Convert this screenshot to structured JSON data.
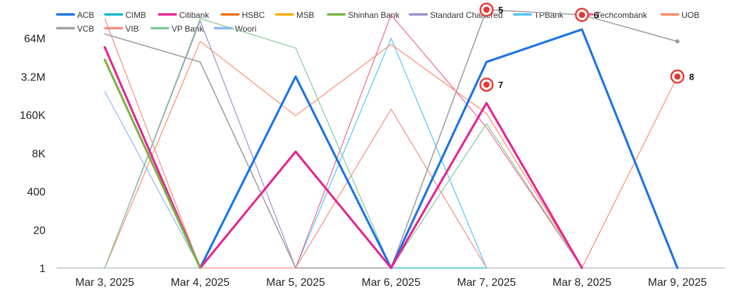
{
  "chart_data": {
    "type": "line",
    "title": "",
    "xlabel": "",
    "ylabel": "",
    "y_scale": "log",
    "grid": false,
    "legend_position": "top",
    "categories": [
      "Mar 3, 2025",
      "Mar 4, 2025",
      "Mar 5, 2025",
      "Mar 6, 2025",
      "Mar 7, 2025",
      "Mar 8, 2025",
      "Mar 9, 2025"
    ],
    "y_ticks": [
      {
        "value": 1,
        "label": "1"
      },
      {
        "value": 20,
        "label": "20"
      },
      {
        "value": 400,
        "label": "400"
      },
      {
        "value": 8000,
        "label": "8K"
      },
      {
        "value": 160000,
        "label": "160K"
      },
      {
        "value": 3200000,
        "label": "3.2M"
      },
      {
        "value": 64000000,
        "label": "64M"
      }
    ],
    "ylim": [
      1,
      1280000000
    ],
    "series": [
      {
        "name": "ACB",
        "color": "#1a73e8",
        "width": 3.2,
        "values": [
          null,
          1,
          3200000,
          1,
          10000000,
          128000000,
          1
        ]
      },
      {
        "name": "CIMB",
        "color": "#12b5cb",
        "width": 1.2,
        "values": [
          null,
          null,
          null,
          1,
          1,
          null,
          null
        ]
      },
      {
        "name": "Citibank",
        "color": "#e52592",
        "width": 3.2,
        "values": [
          32000000,
          1,
          9000,
          1,
          400000,
          1,
          null
        ]
      },
      {
        "name": "HSBC",
        "color": "#e8710a",
        "width": 2.2,
        "values": [
          null,
          null,
          null,
          null,
          null,
          null,
          null
        ]
      },
      {
        "name": "MSB",
        "color": "#f9ab00",
        "width": 2.2,
        "values": [
          12000000,
          1,
          null,
          null,
          null,
          null,
          null
        ]
      },
      {
        "name": "Shinhan Bank",
        "color": "#7cb342",
        "width": 3.2,
        "values": [
          12000000,
          1,
          null,
          null,
          null,
          null,
          null
        ]
      },
      {
        "name": "Standard Chartered",
        "color": "#9e8cc8",
        "width": 1.2,
        "values": [
          1,
          250000000,
          1,
          null,
          null,
          null,
          null
        ]
      },
      {
        "name": "TPBank",
        "color": "#4fc3f7",
        "width": 1.2,
        "values": [
          null,
          null,
          1,
          64000000,
          1,
          null,
          null
        ]
      },
      {
        "name": "Techcombank",
        "color": "#f06292",
        "width": 1.2,
        "values": [
          null,
          null,
          1,
          400000000,
          60000,
          1,
          null
        ]
      },
      {
        "name": "UOB",
        "color": "#ff8a65",
        "width": 1.2,
        "values": [
          1,
          50000000,
          150000,
          40000000,
          180000,
          1,
          3200000
        ]
      },
      {
        "name": "VCB",
        "color": "#9e9e9e",
        "width": 1.6,
        "values": [
          90000000,
          10000000,
          1,
          1,
          600000000,
          400000000,
          50000000
        ]
      },
      {
        "name": "VIB",
        "color": "#f28b82",
        "width": 1.2,
        "values": [
          300000000,
          1,
          1,
          250000,
          1,
          null,
          null
        ]
      },
      {
        "name": "VP Bank",
        "color": "#81c995",
        "width": 1.2,
        "values": [
          1,
          300000000,
          30000000,
          1,
          80000,
          1,
          null
        ]
      },
      {
        "name": "Woori",
        "color": "#8ab4f8",
        "width": 1.2,
        "values": [
          1000000,
          1,
          null,
          null,
          null,
          null,
          null
        ]
      }
    ],
    "annotations": [
      {
        "label": "5",
        "category": "Mar 7, 2025",
        "value": 600000000
      },
      {
        "label": "6",
        "category": "Mar 8, 2025",
        "value": 400000000
      },
      {
        "label": "7",
        "category": "Mar 7, 2025",
        "value": 1700000
      },
      {
        "label": "8",
        "category": "Mar 9, 2025",
        "value": 3200000
      }
    ]
  }
}
